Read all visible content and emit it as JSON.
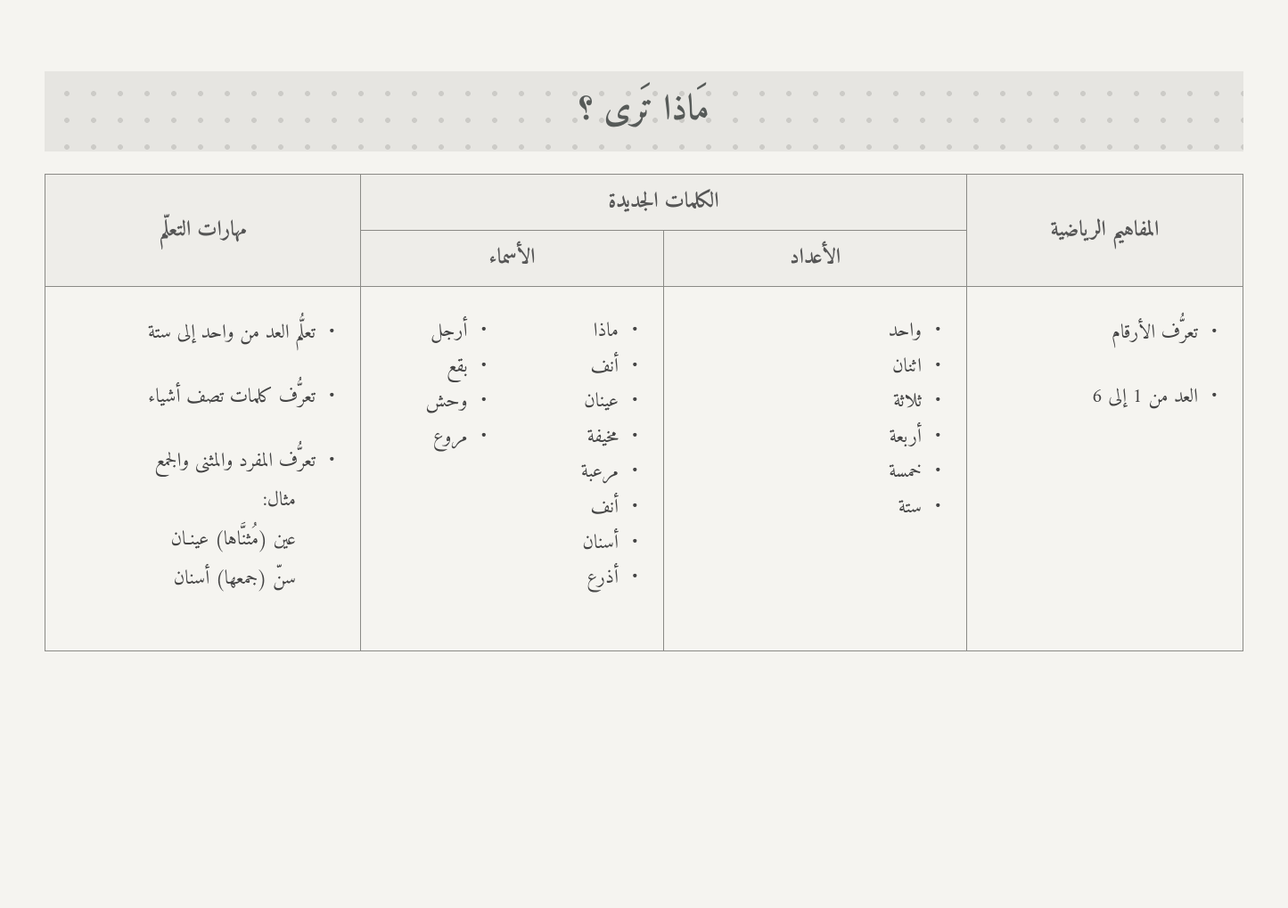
{
  "colors": {
    "page_bg": "#f5f4f0",
    "banner_bg": "#e6e5e1",
    "banner_dot": "#cccbc7",
    "border": "#8a8a86",
    "header_bg": "#eeede9",
    "text": "#444444",
    "title_text": "#565a58"
  },
  "title": "مَاذا تَرى ؟",
  "headers": {
    "concepts": "المفاهيم الرياضية",
    "new_words": "الكلمات الجديدة",
    "numbers": "الأعداد",
    "nouns": "الأسماء",
    "skills": "مهارات التعلّم"
  },
  "concepts": {
    "items": [
      "تعرُّف الأرقام",
      "العد من 1 إلى 6"
    ]
  },
  "numbers": {
    "items": [
      "واحد",
      "اثنان",
      "ثلاثة",
      "أربعة",
      "خمسة",
      "ستة"
    ]
  },
  "nouns_a": {
    "items": [
      "ماذا",
      "أنف",
      "عينان",
      "مخيفة",
      "مرعبة",
      "أنف",
      "أسنان",
      "أذرع"
    ]
  },
  "nouns_b": {
    "items": [
      "أرجل",
      "بقع",
      "وحش",
      "مروع"
    ]
  },
  "skills": {
    "item1": "تعلُّم العد من واحد إلى ستة",
    "item2": "تعرُّف كلمات تصف أشياء",
    "item3": "تعرُّف المفرد والمثنى والجمع",
    "item3_sub1": "مثال:",
    "item3_sub2": "عين (مُثنَّاها) عينـان",
    "item3_sub3": "سنّ (جمعها) أسنان"
  }
}
